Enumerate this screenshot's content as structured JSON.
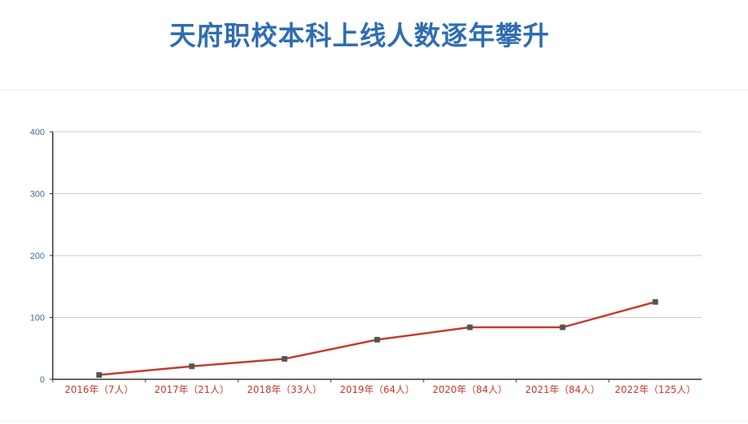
{
  "title": "天府职校本科上线人数逐年攀升",
  "colors": {
    "title": "#2f6db3",
    "line": "#c8392b",
    "marker": "#555555",
    "ytick": "#3a6ea5",
    "xtick": "#c8392b",
    "grid": "#cccccc"
  },
  "chart_data": {
    "type": "line",
    "title": "天府职校本科上线人数逐年攀升",
    "categories": [
      "2016年（7人）",
      "2017年（21人）",
      "2018年（33人）",
      "2019年（64人）",
      "2020年（84人）",
      "2021年（84人）",
      "2022年（125人）"
    ],
    "values": [
      7,
      21,
      33,
      64,
      84,
      84,
      125
    ],
    "ylim": [
      0,
      400
    ],
    "yticks": [
      "0",
      "100",
      "200",
      "300",
      "400"
    ],
    "grid": true,
    "legend": "none",
    "xlabel": "",
    "ylabel": ""
  }
}
